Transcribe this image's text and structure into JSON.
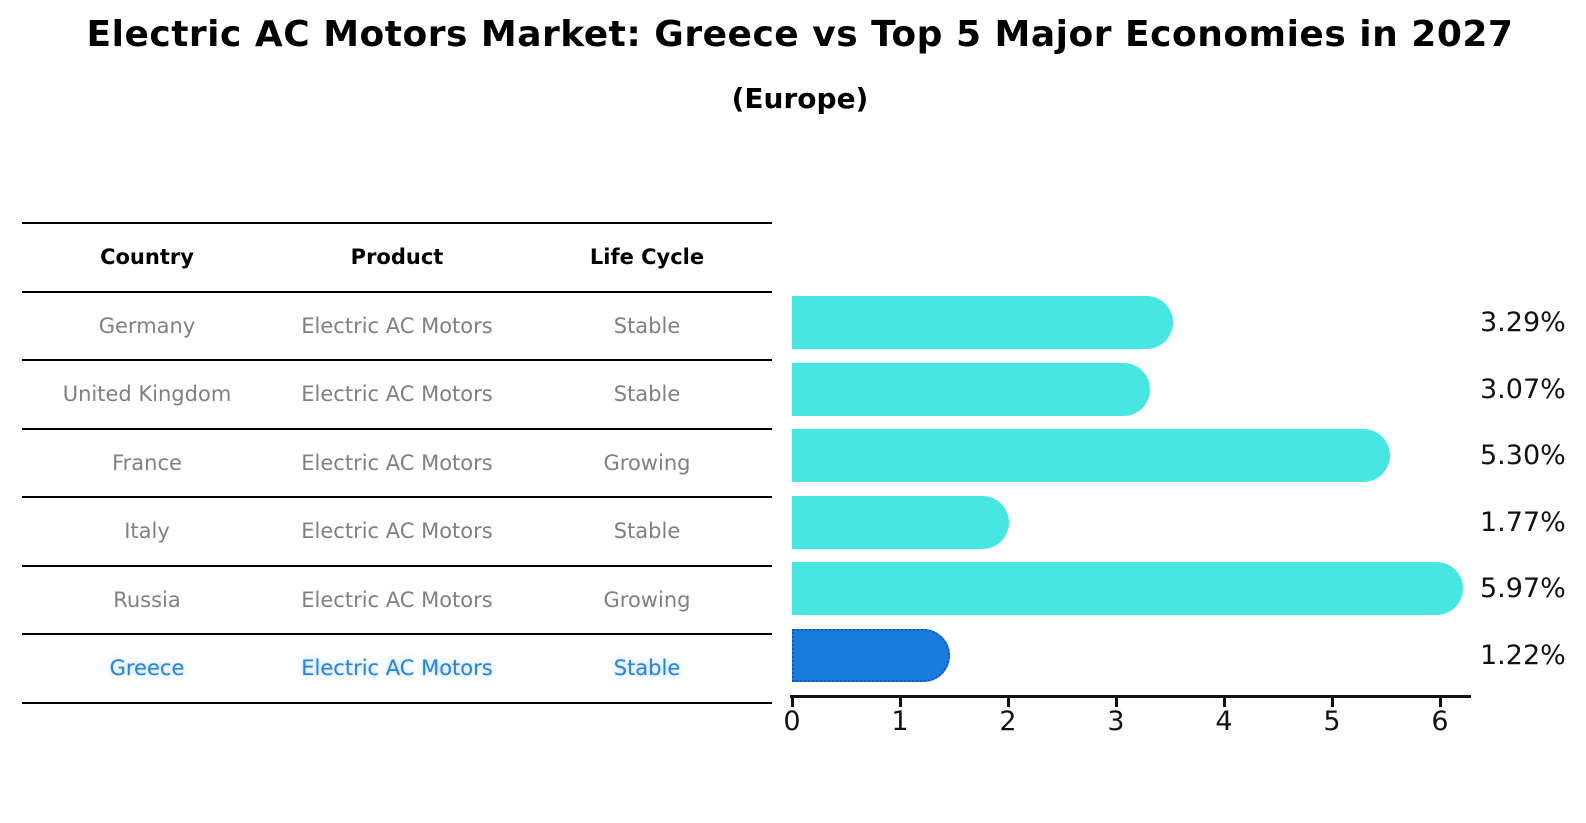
{
  "header": {
    "title": "Electric AC Motors Market: Greece vs Top 5 Major Economies in 2027",
    "subtitle": "(Europe)"
  },
  "table": {
    "headers": {
      "country": "Country",
      "product": "Product",
      "life_cycle": "Life Cycle"
    },
    "rows": [
      {
        "country": "Germany",
        "product": "Electric AC Motors",
        "life_cycle": "Stable"
      },
      {
        "country": "United Kingdom",
        "product": "Electric AC Motors",
        "life_cycle": "Stable"
      },
      {
        "country": "France",
        "product": "Electric AC Motors",
        "life_cycle": "Growing"
      },
      {
        "country": "Italy",
        "product": "Electric AC Motors",
        "life_cycle": "Stable"
      },
      {
        "country": "Russia",
        "product": "Electric AC Motors",
        "life_cycle": "Growing"
      },
      {
        "country": "Greece",
        "product": "Electric AC Motors",
        "life_cycle": "Stable"
      }
    ]
  },
  "chart_data": {
    "type": "bar",
    "orientation": "horizontal",
    "title": "Electric AC Motors Market: Greece vs Top 5 Major Economies in 2027 (Europe)",
    "xlabel": "",
    "ylabel": "",
    "categories": [
      "Germany",
      "United Kingdom",
      "France",
      "Italy",
      "Russia",
      "Greece"
    ],
    "values": [
      3.29,
      3.07,
      5.3,
      1.77,
      5.97,
      1.22
    ],
    "value_labels": [
      "3.29%",
      "3.07%",
      "5.30%",
      "1.77%",
      "5.97%",
      "1.22%"
    ],
    "x_ticks": [
      0,
      1,
      2,
      3,
      4,
      5,
      6
    ],
    "xlim": [
      0,
      6.3
    ],
    "grid": false,
    "legend": false,
    "bar_color": "#48E6E0",
    "highlight_color": "#1A7DDE",
    "highlight_border_color": "#0A55C4",
    "highlight_index": 5
  },
  "colors": {
    "text_primary": "#000000",
    "text_muted": "#808080",
    "text_highlight": "#2E82D2",
    "axis": "#111111"
  }
}
